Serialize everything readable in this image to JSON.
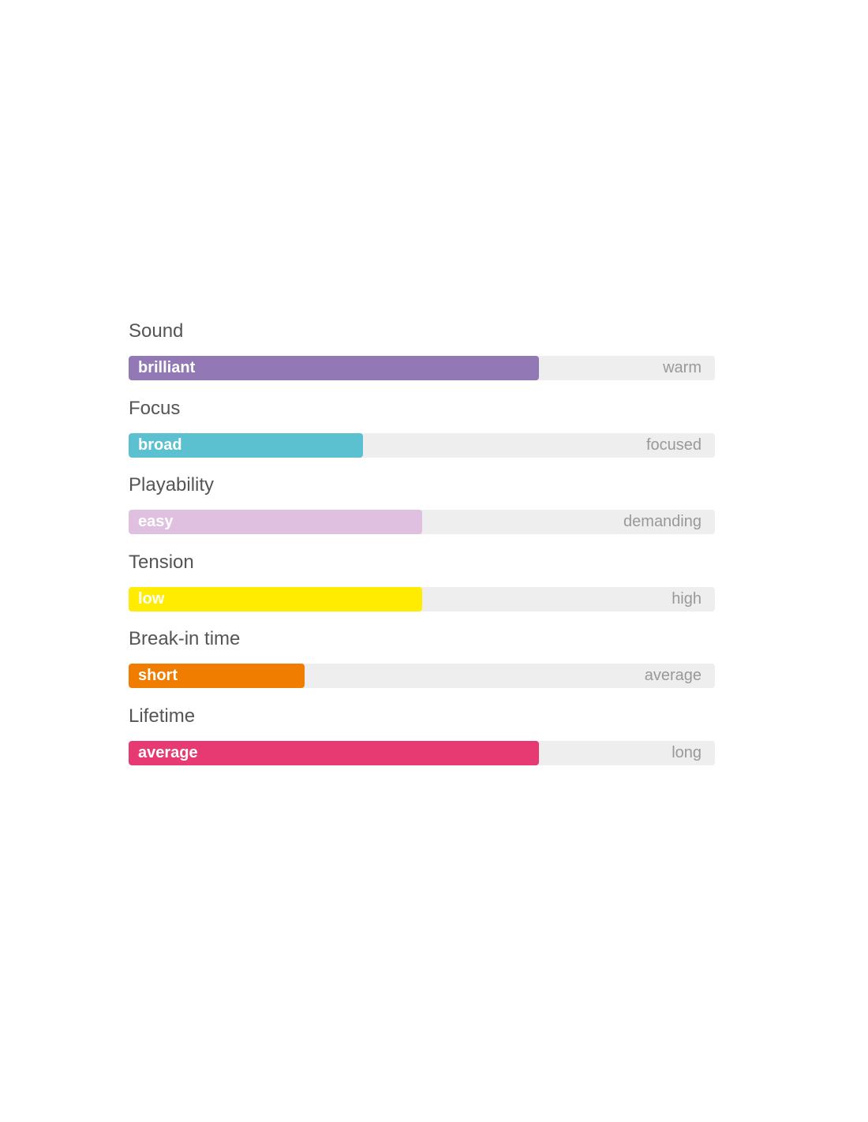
{
  "ratings": [
    {
      "label": "Sound",
      "low": "brilliant",
      "high": "warm",
      "value_percent": 70,
      "color": "#9378b6"
    },
    {
      "label": "Focus",
      "low": "broad",
      "high": "focused",
      "value_percent": 40,
      "color": "#5bc0d0"
    },
    {
      "label": "Playability",
      "low": "easy",
      "high": "demanding",
      "value_percent": 50,
      "color": "#e0c0e0"
    },
    {
      "label": "Tension",
      "low": "low",
      "high": "high",
      "value_percent": 50,
      "color": "#ffec00"
    },
    {
      "label": "Break-in time",
      "low": "short",
      "high": "average",
      "value_percent": 30,
      "color": "#f07d00"
    },
    {
      "label": "Lifetime",
      "low": "average",
      "high": "long",
      "value_percent": 70,
      "color": "#e83a72"
    }
  ]
}
